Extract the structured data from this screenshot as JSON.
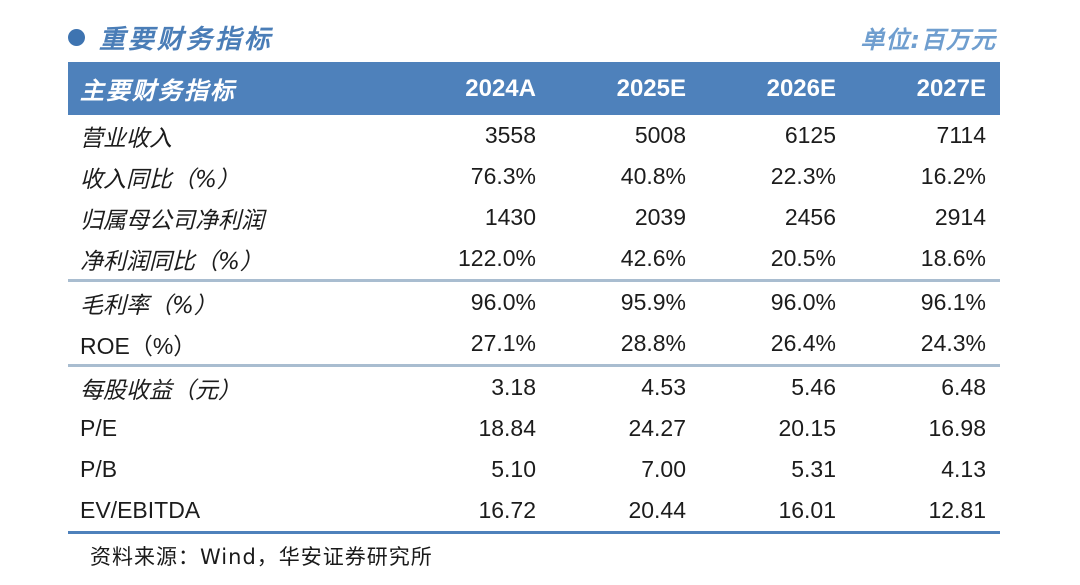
{
  "page": {
    "title": "重要财务指标",
    "unit_label": "单位:百万元",
    "source": "资料来源：Wind，华安证券研究所"
  },
  "colors": {
    "header_bg": "#4e81bb",
    "title_blue": "#4a7db7",
    "unit_blue": "#6f9ecf",
    "section_divider": "#a9bdd0",
    "bullet": "#3e74b1"
  },
  "table": {
    "header": {
      "label": "主要财务指标",
      "columns": [
        "2024A",
        "2025E",
        "2026E",
        "2027E"
      ]
    },
    "rows": [
      {
        "label": "营业收入",
        "values": [
          "3558",
          "5008",
          "6125",
          "7114"
        ]
      },
      {
        "label": "收入同比（%）",
        "values": [
          "76.3%",
          "40.8%",
          "22.3%",
          "16.2%"
        ]
      },
      {
        "label": "归属母公司净利润",
        "values": [
          "1430",
          "2039",
          "2456",
          "2914"
        ]
      },
      {
        "label": "净利润同比（%）",
        "values": [
          "122.0%",
          "42.6%",
          "20.5%",
          "18.6%"
        ]
      },
      {
        "label": "毛利率（%）",
        "values": [
          "96.0%",
          "95.9%",
          "96.0%",
          "96.1%"
        ]
      },
      {
        "label": "ROE（%）",
        "values": [
          "27.1%",
          "28.8%",
          "26.4%",
          "24.3%"
        ]
      },
      {
        "label": "每股收益（元）",
        "values": [
          "3.18",
          "4.53",
          "5.46",
          "6.48"
        ]
      },
      {
        "label": "P/E",
        "values": [
          "18.84",
          "24.27",
          "20.15",
          "16.98"
        ]
      },
      {
        "label": "P/B",
        "values": [
          "5.10",
          "7.00",
          "5.31",
          "4.13"
        ]
      },
      {
        "label": "EV/EBITDA",
        "values": [
          "16.72",
          "20.44",
          "16.01",
          "12.81"
        ]
      }
    ]
  }
}
